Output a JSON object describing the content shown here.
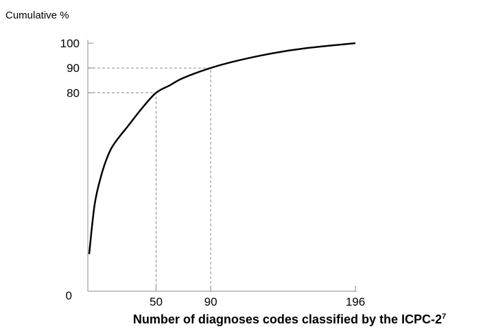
{
  "chart_data": {
    "type": "line",
    "ylabel": "Cumulative %",
    "xlabel": "Number of diagnoses codes classified by the ICPC-2",
    "xlabel_sup": "7",
    "series": [
      {
        "color": "#000000",
        "x": [
          1,
          5,
          10,
          15,
          20,
          30,
          40,
          50,
          60,
          70,
          90,
          110,
          136,
          160,
          196
        ],
        "values": [
          15,
          35,
          47,
          55,
          60,
          67,
          74,
          80,
          83,
          86,
          90,
          93,
          96,
          98,
          100
        ]
      }
    ],
    "guides": [
      {
        "x": 50,
        "y": 80
      },
      {
        "x": 90,
        "y": 90
      }
    ],
    "xlim": [
      0,
      196
    ],
    "xticks": [
      50,
      90,
      196
    ],
    "ylim": [
      0,
      100
    ],
    "yticks": [
      0,
      80,
      90,
      100
    ]
  }
}
